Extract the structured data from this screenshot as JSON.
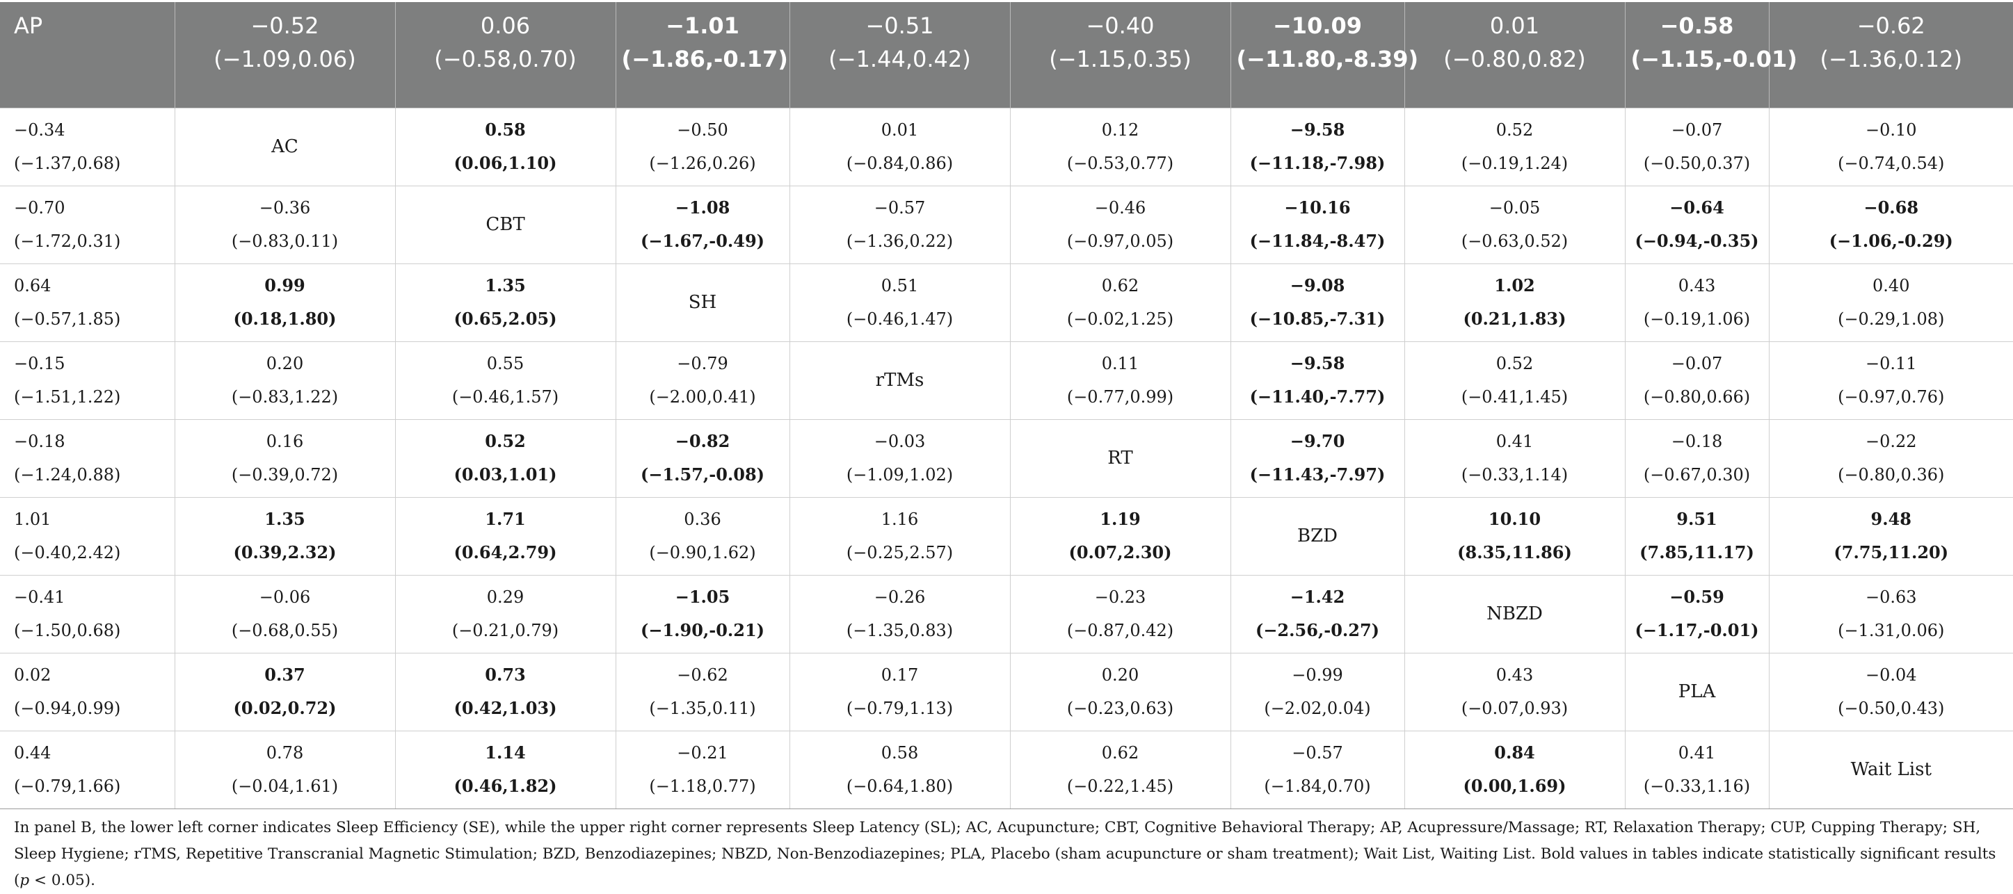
{
  "header": [
    {
      "line1": "AP",
      "line2": "",
      "sig": false
    },
    {
      "line1": "−0.52",
      "line2": "(−1.09,0.06)",
      "sig": false
    },
    {
      "line1": "0.06",
      "line2": "(−0.58,0.70)",
      "sig": false
    },
    {
      "line1": "−1.01",
      "line2": "(−1.86,-0.17)",
      "sig": true
    },
    {
      "line1": "−0.51",
      "line2": "(−1.44,0.42)",
      "sig": false
    },
    {
      "line1": "−0.40",
      "line2": "(−1.15,0.35)",
      "sig": false
    },
    {
      "line1": "−10.09",
      "line2": "(−11.80,-8.39)",
      "sig": true
    },
    {
      "line1": "0.01",
      "line2": "(−0.80,0.82)",
      "sig": false
    },
    {
      "line1": "−0.58",
      "line2": "(−1.15,-0.01)",
      "sig": true
    },
    {
      "line1": "−0.62",
      "line2": "(−1.36,0.12)",
      "sig": false
    }
  ],
  "rows": [
    [
      {
        "v": "−0.34",
        "ci": "(−1.37,0.68)",
        "sig": false
      },
      {
        "v": "AC",
        "diag": true
      },
      {
        "v": "0.58",
        "ci": "(0.06,1.10)",
        "sig": true
      },
      {
        "v": "−0.50",
        "ci": "(−1.26,0.26)",
        "sig": false
      },
      {
        "v": "0.01",
        "ci": "(−0.84,0.86)",
        "sig": false
      },
      {
        "v": "0.12",
        "ci": "(−0.53,0.77)",
        "sig": false
      },
      {
        "v": "−9.58",
        "ci": "(−11.18,-7.98)",
        "sig": true
      },
      {
        "v": "0.52",
        "ci": "(−0.19,1.24)",
        "sig": false
      },
      {
        "v": "−0.07",
        "ci": "(−0.50,0.37)",
        "sig": false
      },
      {
        "v": "−0.10",
        "ci": "(−0.74,0.54)",
        "sig": false
      }
    ],
    [
      {
        "v": "−0.70",
        "ci": "(−1.72,0.31)",
        "sig": false
      },
      {
        "v": "−0.36",
        "ci": "(−0.83,0.11)",
        "sig": false
      },
      {
        "v": "CBT",
        "diag": true
      },
      {
        "v": "−1.08",
        "ci": "(−1.67,-0.49)",
        "sig": true
      },
      {
        "v": "−0.57",
        "ci": "(−1.36,0.22)",
        "sig": false
      },
      {
        "v": "−0.46",
        "ci": "(−0.97,0.05)",
        "sig": false
      },
      {
        "v": "−10.16",
        "ci": "(−11.84,-8.47)",
        "sig": true
      },
      {
        "v": "−0.05",
        "ci": "(−0.63,0.52)",
        "sig": false
      },
      {
        "v": "−0.64",
        "ci": "(−0.94,-0.35)",
        "sig": true
      },
      {
        "v": "−0.68",
        "ci": "(−1.06,-0.29)",
        "sig": true
      }
    ],
    [
      {
        "v": "0.64",
        "ci": "(−0.57,1.85)",
        "sig": false
      },
      {
        "v": "0.99",
        "ci": "(0.18,1.80)",
        "sig": true
      },
      {
        "v": "1.35",
        "ci": "(0.65,2.05)",
        "sig": true
      },
      {
        "v": "SH",
        "diag": true
      },
      {
        "v": "0.51",
        "ci": "(−0.46,1.47)",
        "sig": false
      },
      {
        "v": "0.62",
        "ci": "(−0.02,1.25)",
        "sig": false
      },
      {
        "v": "−9.08",
        "ci": "(−10.85,-7.31)",
        "sig": true
      },
      {
        "v": "1.02",
        "ci": "(0.21,1.83)",
        "sig": true
      },
      {
        "v": "0.43",
        "ci": "(−0.19,1.06)",
        "sig": false
      },
      {
        "v": "0.40",
        "ci": "(−0.29,1.08)",
        "sig": false
      }
    ],
    [
      {
        "v": "−0.15",
        "ci": "(−1.51,1.22)",
        "sig": false
      },
      {
        "v": "0.20",
        "ci": "(−0.83,1.22)",
        "sig": false
      },
      {
        "v": "0.55",
        "ci": "(−0.46,1.57)",
        "sig": false
      },
      {
        "v": "−0.79",
        "ci": "(−2.00,0.41)",
        "sig": false
      },
      {
        "v": "rTMs",
        "diag": true
      },
      {
        "v": "0.11",
        "ci": "(−0.77,0.99)",
        "sig": false
      },
      {
        "v": "−9.58",
        "ci": "(−11.40,-7.77)",
        "sig": true
      },
      {
        "v": "0.52",
        "ci": "(−0.41,1.45)",
        "sig": false
      },
      {
        "v": "−0.07",
        "ci": "(−0.80,0.66)",
        "sig": false
      },
      {
        "v": "−0.11",
        "ci": "(−0.97,0.76)",
        "sig": false
      }
    ],
    [
      {
        "v": "−0.18",
        "ci": "(−1.24,0.88)",
        "sig": false
      },
      {
        "v": "0.16",
        "ci": "(−0.39,0.72)",
        "sig": false
      },
      {
        "v": "0.52",
        "ci": "(0.03,1.01)",
        "sig": true
      },
      {
        "v": "−0.82",
        "ci": "(−1.57,-0.08)",
        "sig": true
      },
      {
        "v": "−0.03",
        "ci": "(−1.09,1.02)",
        "sig": false
      },
      {
        "v": "RT",
        "diag": true
      },
      {
        "v": "−9.70",
        "ci": "(−11.43,-7.97)",
        "sig": true
      },
      {
        "v": "0.41",
        "ci": "(−0.33,1.14)",
        "sig": false
      },
      {
        "v": "−0.18",
        "ci": "(−0.67,0.30)",
        "sig": false
      },
      {
        "v": "−0.22",
        "ci": "(−0.80,0.36)",
        "sig": false
      }
    ],
    [
      {
        "v": "1.01",
        "ci": "(−0.40,2.42)",
        "sig": false
      },
      {
        "v": "1.35",
        "ci": "(0.39,2.32)",
        "sig": true
      },
      {
        "v": "1.71",
        "ci": "(0.64,2.79)",
        "sig": true
      },
      {
        "v": "0.36",
        "ci": "(−0.90,1.62)",
        "sig": false
      },
      {
        "v": "1.16",
        "ci": "(−0.25,2.57)",
        "sig": false
      },
      {
        "v": "1.19",
        "ci": "(0.07,2.30)",
        "sig": true
      },
      {
        "v": "BZD",
        "diag": true
      },
      {
        "v": "10.10",
        "ci": "(8.35,11.86)",
        "sig": true
      },
      {
        "v": "9.51",
        "ci": "(7.85,11.17)",
        "sig": true
      },
      {
        "v": "9.48",
        "ci": "(7.75,11.20)",
        "sig": true
      }
    ],
    [
      {
        "v": "−0.41",
        "ci": "(−1.50,0.68)",
        "sig": false
      },
      {
        "v": "−0.06",
        "ci": "(−0.68,0.55)",
        "sig": false
      },
      {
        "v": "0.29",
        "ci": "(−0.21,0.79)",
        "sig": false
      },
      {
        "v": "−1.05",
        "ci": "(−1.90,-0.21)",
        "sig": true
      },
      {
        "v": "−0.26",
        "ci": "(−1.35,0.83)",
        "sig": false
      },
      {
        "v": "−0.23",
        "ci": "(−0.87,0.42)",
        "sig": false
      },
      {
        "v": "−1.42",
        "ci": "(−2.56,-0.27)",
        "sig": true
      },
      {
        "v": "NBZD",
        "diag": true
      },
      {
        "v": "−0.59",
        "ci": "(−1.17,-0.01)",
        "sig": true
      },
      {
        "v": "−0.63",
        "ci": "(−1.31,0.06)",
        "sig": false
      }
    ],
    [
      {
        "v": "0.02",
        "ci": "(−0.94,0.99)",
        "sig": false
      },
      {
        "v": "0.37",
        "ci": "(0.02,0.72)",
        "sig": true
      },
      {
        "v": "0.73",
        "ci": "(0.42,1.03)",
        "sig": true
      },
      {
        "v": "−0.62",
        "ci": "(−1.35,0.11)",
        "sig": false
      },
      {
        "v": "0.17",
        "ci": "(−0.79,1.13)",
        "sig": false
      },
      {
        "v": "0.20",
        "ci": "(−0.23,0.63)",
        "sig": false
      },
      {
        "v": "−0.99",
        "ci": "(−2.02,0.04)",
        "sig": false
      },
      {
        "v": "0.43",
        "ci": "(−0.07,0.93)",
        "sig": false
      },
      {
        "v": "PLA",
        "diag": true
      },
      {
        "v": "−0.04",
        "ci": "(−0.50,0.43)",
        "sig": false
      }
    ],
    [
      {
        "v": "0.44",
        "ci": "(−0.79,1.66)",
        "sig": false
      },
      {
        "v": "0.78",
        "ci": "(−0.04,1.61)",
        "sig": false
      },
      {
        "v": "1.14",
        "ci": "(0.46,1.82)",
        "sig": true
      },
      {
        "v": "−0.21",
        "ci": "(−1.18,0.77)",
        "sig": false
      },
      {
        "v": "0.58",
        "ci": "(−0.64,1.80)",
        "sig": false
      },
      {
        "v": "0.62",
        "ci": "(−0.22,1.45)",
        "sig": false
      },
      {
        "v": "−0.57",
        "ci": "(−1.84,0.70)",
        "sig": false
      },
      {
        "v": "0.84",
        "ci": "(0.00,1.69)",
        "sig": true
      },
      {
        "v": "0.41",
        "ci": "(−0.33,1.16)",
        "sig": false
      },
      {
        "v": "Wait List",
        "diag": true
      }
    ]
  ],
  "footnote": {
    "text": "In panel B, the lower left corner indicates Sleep Efficiency (SE), while the upper right corner represents Sleep Latency (SL); AC, Acupuncture; CBT, Cognitive Behavioral Therapy; AP, Acupressure/Massage; RT, Relaxation Therapy; CUP, Cupping Therapy; SH, Sleep Hygiene; rTMS, Repetitive Transcranial Magnetic Stimulation; BZD, Benzodiazepines; NBZD, Non-Benzodiazepines; PLA, Placebo (sham acupuncture or sham treatment); Wait List, Waiting List. Bold values in tables indicate statistically significant results (",
    "p_symbol": "p",
    "p_value": " < 0.05)."
  }
}
